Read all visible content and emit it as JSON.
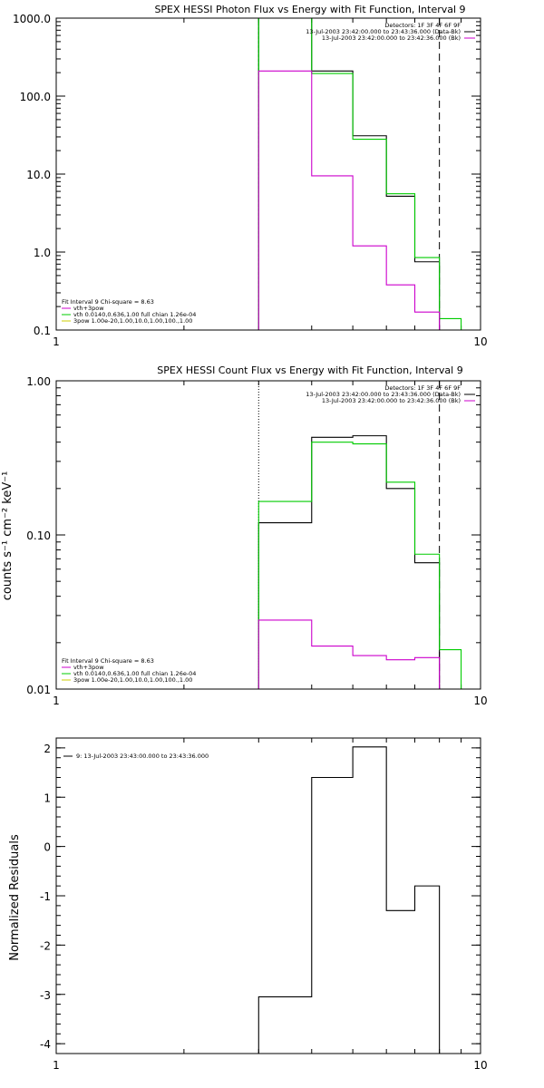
{
  "colors": {
    "observed": "#000000",
    "model": "#00cc00",
    "background": "#cc00cc",
    "component": "#cccc00"
  },
  "chart_data": [
    {
      "type": "line",
      "title": "SPEX HESSI Photon Flux vs Energy with Fit Function, Interval 9",
      "xlabel": "",
      "ylabel": "",
      "xlog": true,
      "ylog": true,
      "xlim": [
        1,
        10
      ],
      "ylim": [
        0.1,
        1000
      ],
      "xticks": [
        "1",
        "10"
      ],
      "yticks": [
        "0.1",
        "1.0",
        "10.0",
        "100.0",
        "1000.0"
      ],
      "vlines": [
        {
          "x": 3,
          "style": "dashed-green"
        },
        {
          "x": 8,
          "style": "dashed"
        }
      ],
      "legend_topright": [
        {
          "text": "Detectors: 1F 3F 4F 6F 9F",
          "color": ""
        },
        {
          "text": "13-Jul-2003 23:42:00.000 to 23:43:36.000 (Data-Bk)",
          "color": "#000000"
        },
        {
          "text": "13-Jul-2003 23:42:00.000 to 23:42:36.000 (Bk)",
          "color": "#cc00cc"
        }
      ],
      "legend_bottomleft": [
        {
          "text": "Fit Interval 9   Chi-square = 8.63",
          "color": ""
        },
        {
          "text": "vth+3pow",
          "color": "#cc00cc"
        },
        {
          "text": "vth 0.0140,0.636,1.00  full chian 1.26e-04",
          "color": "#00cc00"
        },
        {
          "text": "3pow 1.00e-20,1.00,10.0,1.00,100.,1.00",
          "color": "#cccc00"
        }
      ],
      "series": [
        {
          "color": "#000000",
          "edges": [
            3,
            4,
            5,
            6,
            7,
            8
          ],
          "values": [
            1000,
            210,
            31,
            5.2,
            0.75
          ]
        },
        {
          "color": "#00cc00",
          "edges": [
            3,
            4,
            5,
            6,
            7,
            8,
            9
          ],
          "values": [
            1000,
            195,
            28,
            5.6,
            0.85,
            0.14
          ]
        },
        {
          "color": "#cc00cc",
          "edges": [
            3,
            4,
            5,
            6,
            7,
            8
          ],
          "values": [
            210,
            9.5,
            1.2,
            0.38,
            0.17
          ]
        }
      ]
    },
    {
      "type": "line",
      "title": "SPEX HESSI Count Flux vs Energy with Fit Function, Interval 9",
      "xlabel": "",
      "ylabel": "counts s⁻¹ cm⁻² keV⁻¹",
      "xlog": true,
      "ylog": true,
      "xlim": [
        1,
        10
      ],
      "ylim": [
        0.01,
        1.0
      ],
      "xticks": [
        "1",
        "10"
      ],
      "yticks": [
        "0.01",
        "0.10",
        "1.00"
      ],
      "vlines": [
        {
          "x": 3,
          "style": "dotted"
        },
        {
          "x": 8,
          "style": "dashed"
        }
      ],
      "legend_topright": [
        {
          "text": "Detectors: 1F 3F 4F 6F 9F",
          "color": ""
        },
        {
          "text": "13-Jul-2003 23:42:00.000 to 23:43:36.000 (Data-Bk)",
          "color": "#000000"
        },
        {
          "text": "13-Jul-2003 23:42:00.000 to 23:42:36.000 (Bk)",
          "color": "#cc00cc"
        }
      ],
      "legend_bottomleft": [
        {
          "text": "Fit Interval 9   Chi-square = 8.63",
          "color": ""
        },
        {
          "text": "vth+3pow",
          "color": "#cc00cc"
        },
        {
          "text": "vth 0.0140,0.636,1.00  full chian 1.26e-04",
          "color": "#00cc00"
        },
        {
          "text": "3pow 1.00e-20,1.00,10.0,1.00,100.,1.00",
          "color": "#cccc00"
        }
      ],
      "series": [
        {
          "color": "#000000",
          "edges": [
            3,
            4,
            5,
            6,
            7,
            8
          ],
          "values": [
            0.12,
            0.43,
            0.44,
            0.2,
            0.066
          ]
        },
        {
          "color": "#00cc00",
          "edges": [
            3,
            4,
            5,
            6,
            7,
            8,
            9
          ],
          "values": [
            0.165,
            0.4,
            0.39,
            0.22,
            0.075,
            0.018
          ]
        },
        {
          "color": "#cc00cc",
          "edges": [
            3,
            4,
            5,
            6,
            7,
            8
          ],
          "values": [
            0.028,
            0.019,
            0.0165,
            0.0155,
            0.016
          ]
        }
      ]
    },
    {
      "type": "line",
      "title": "",
      "xlabel": "",
      "ylabel": "Normalized Residuals",
      "xlog": true,
      "ylog": false,
      "xlim": [
        1,
        10
      ],
      "ylim": [
        -4.2,
        2.2
      ],
      "xticks": [
        "1",
        "10"
      ],
      "yticks": [
        "-4",
        "-3",
        "-2",
        "-1",
        "0",
        "1",
        "2"
      ],
      "vlines": [],
      "legend_topright": [],
      "legend_bottomleft": [],
      "legend_topleft": [
        {
          "text": "9: 13-Jul-2003 23:43:00.000 to 23:43:36.000",
          "color": "#000000"
        }
      ],
      "series": [
        {
          "color": "#000000",
          "edges": [
            3,
            4,
            5,
            6,
            7,
            8
          ],
          "values": [
            -3.05,
            1.4,
            2.02,
            -1.3,
            -0.8
          ]
        }
      ]
    }
  ]
}
